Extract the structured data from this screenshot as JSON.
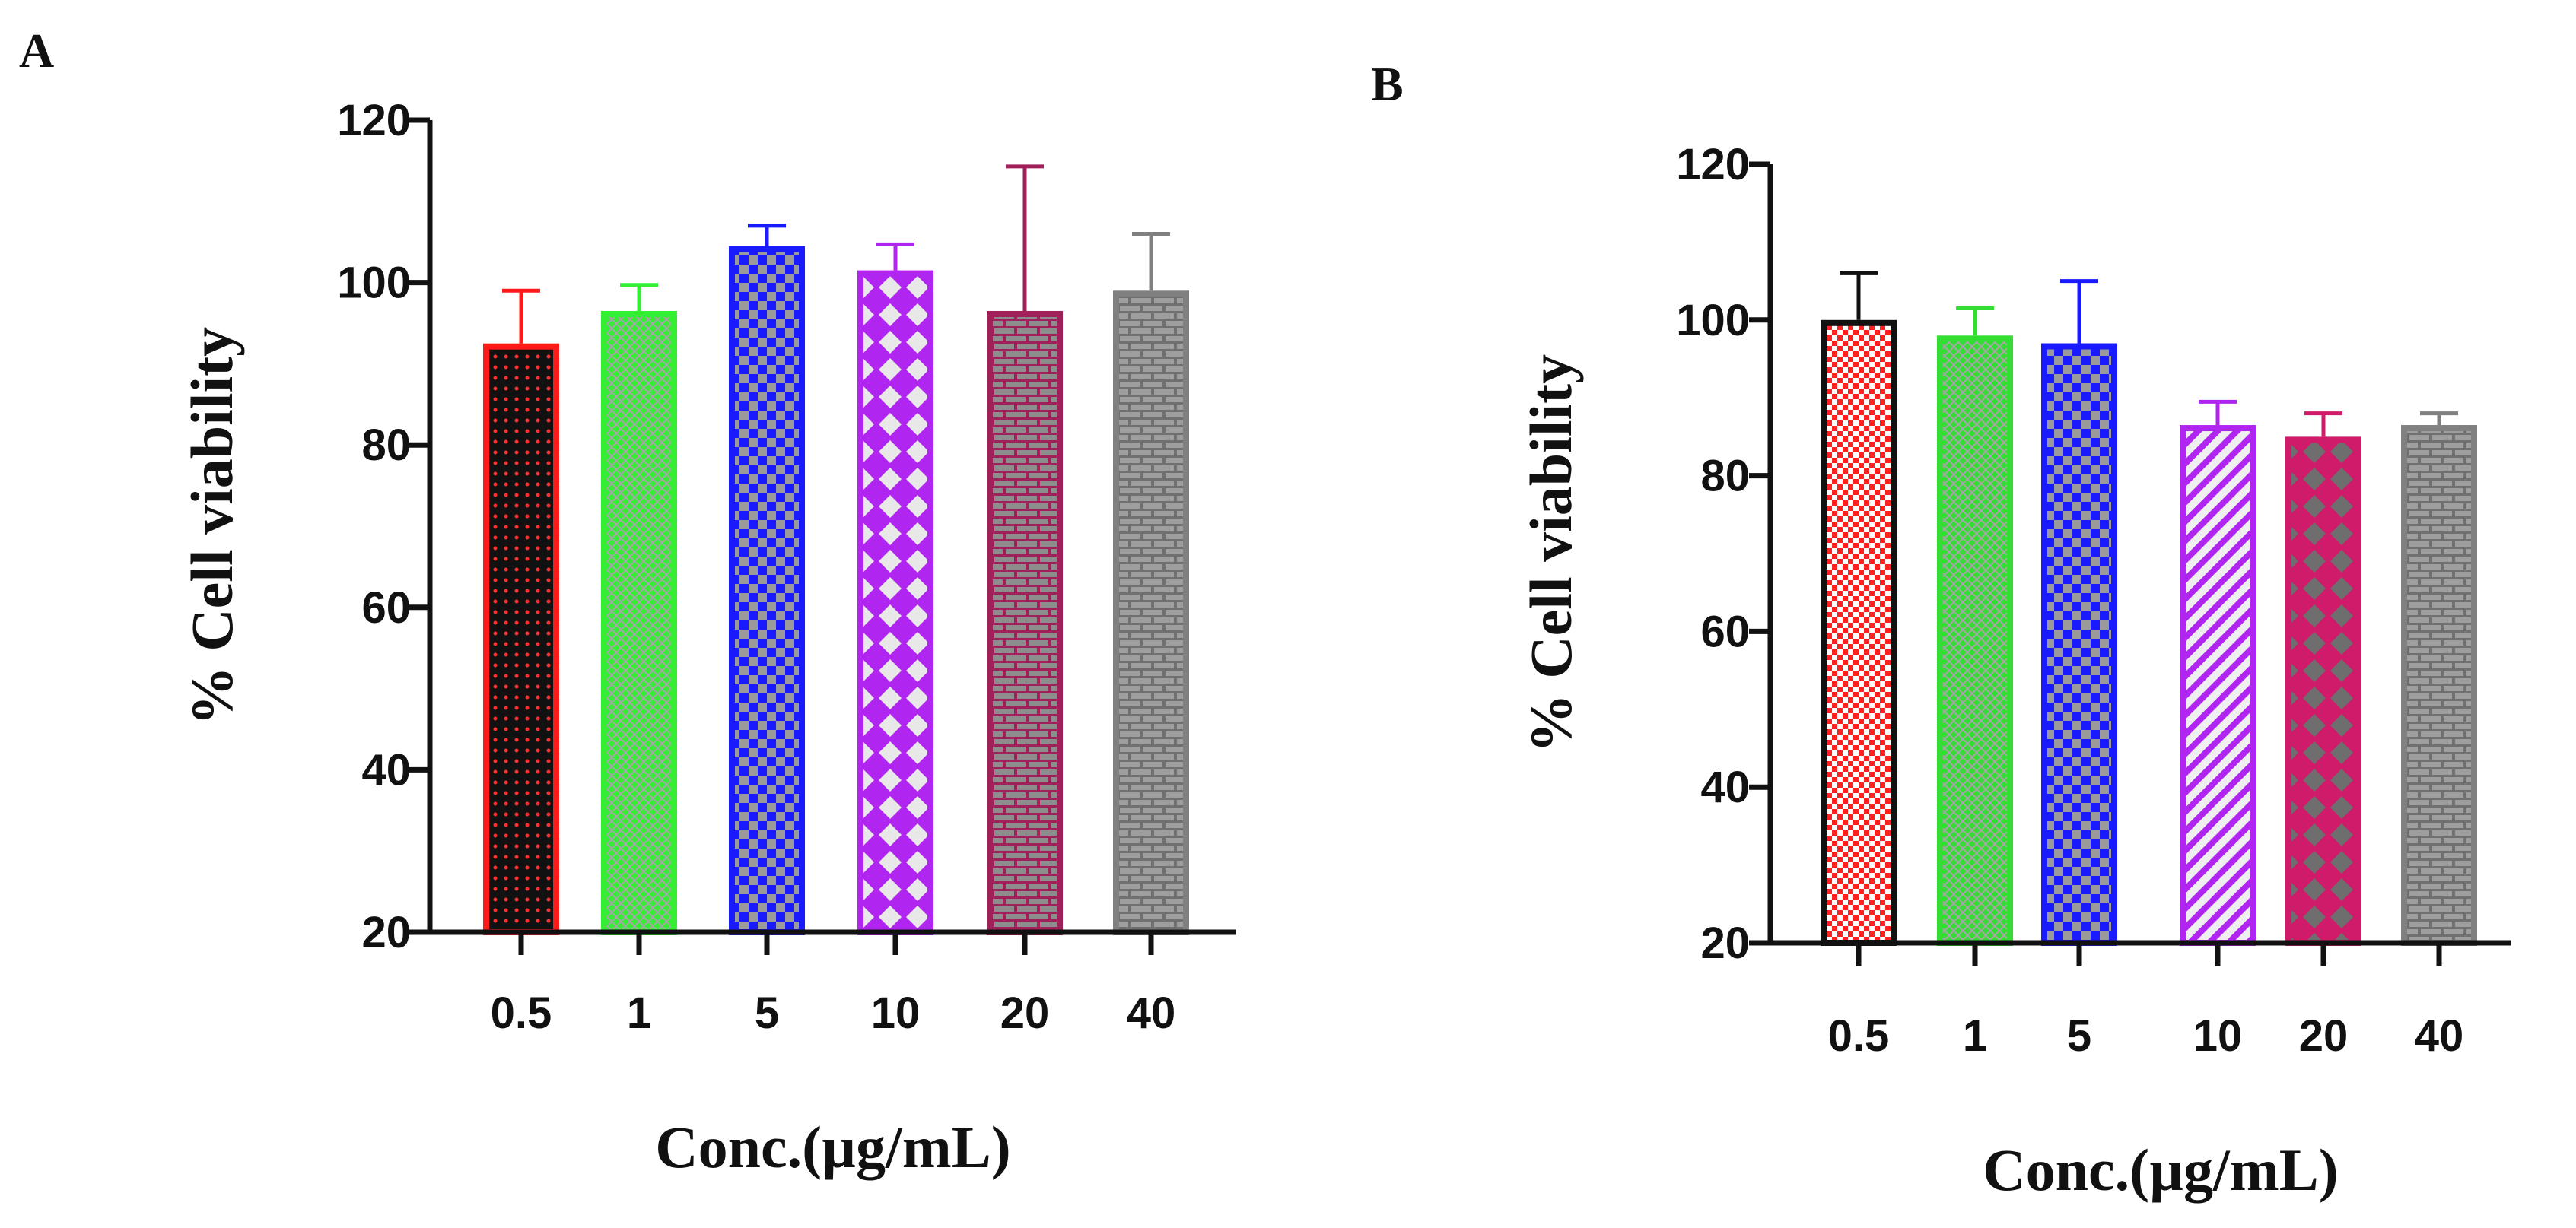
{
  "chart_data": [
    {
      "type": "bar",
      "panel": "A",
      "categories": [
        "0.5",
        "1",
        "5",
        "10",
        "20",
        "40"
      ],
      "values": [
        92.5,
        96.5,
        104.5,
        101.5,
        96.5,
        99
      ],
      "errors": [
        6.5,
        3.2,
        2.5,
        3.2,
        17.8,
        7
      ],
      "colors": [
        "#ff1a1a",
        "#33ee33",
        "#1a1aff",
        "#b026f0",
        "#a0205a",
        "#808080"
      ],
      "patterns": [
        "dots-dark",
        "crosshatch",
        "checker",
        "diamonds",
        "bricks",
        "bricks-grey"
      ],
      "xlabel": "Conc.(µg/mL)",
      "ylabel": "% Cell viability",
      "ylim": [
        20,
        120
      ],
      "yticks": [
        "20",
        "40",
        "60",
        "80",
        "100",
        "120"
      ]
    },
    {
      "type": "bar",
      "panel": "B",
      "categories": [
        "0.5",
        "1",
        "5",
        "10",
        "20",
        "40"
      ],
      "values": [
        100,
        98,
        97,
        86.5,
        85,
        86.5
      ],
      "errors": [
        6,
        3.5,
        8,
        3,
        3,
        1.5
      ],
      "colors": [
        "#ff1a1a",
        "#33dd33",
        "#1a1aff",
        "#b026f0",
        "#d01a6a",
        "#808080"
      ],
      "edgecolors": [
        "#111111",
        "#33dd33",
        "#1a1aff",
        "#b026f0",
        "#d01a6a",
        "#808080"
      ],
      "patterns": [
        "small-check-red",
        "crosshatch",
        "checker",
        "diagonal-white",
        "diamonds-dark",
        "bricks-grey"
      ],
      "xlabel": "Conc.(µg/mL)",
      "ylabel": "% Cell viability",
      "ylim": [
        20,
        120
      ],
      "yticks": [
        "20",
        "40",
        "60",
        "80",
        "100",
        "120"
      ]
    }
  ]
}
